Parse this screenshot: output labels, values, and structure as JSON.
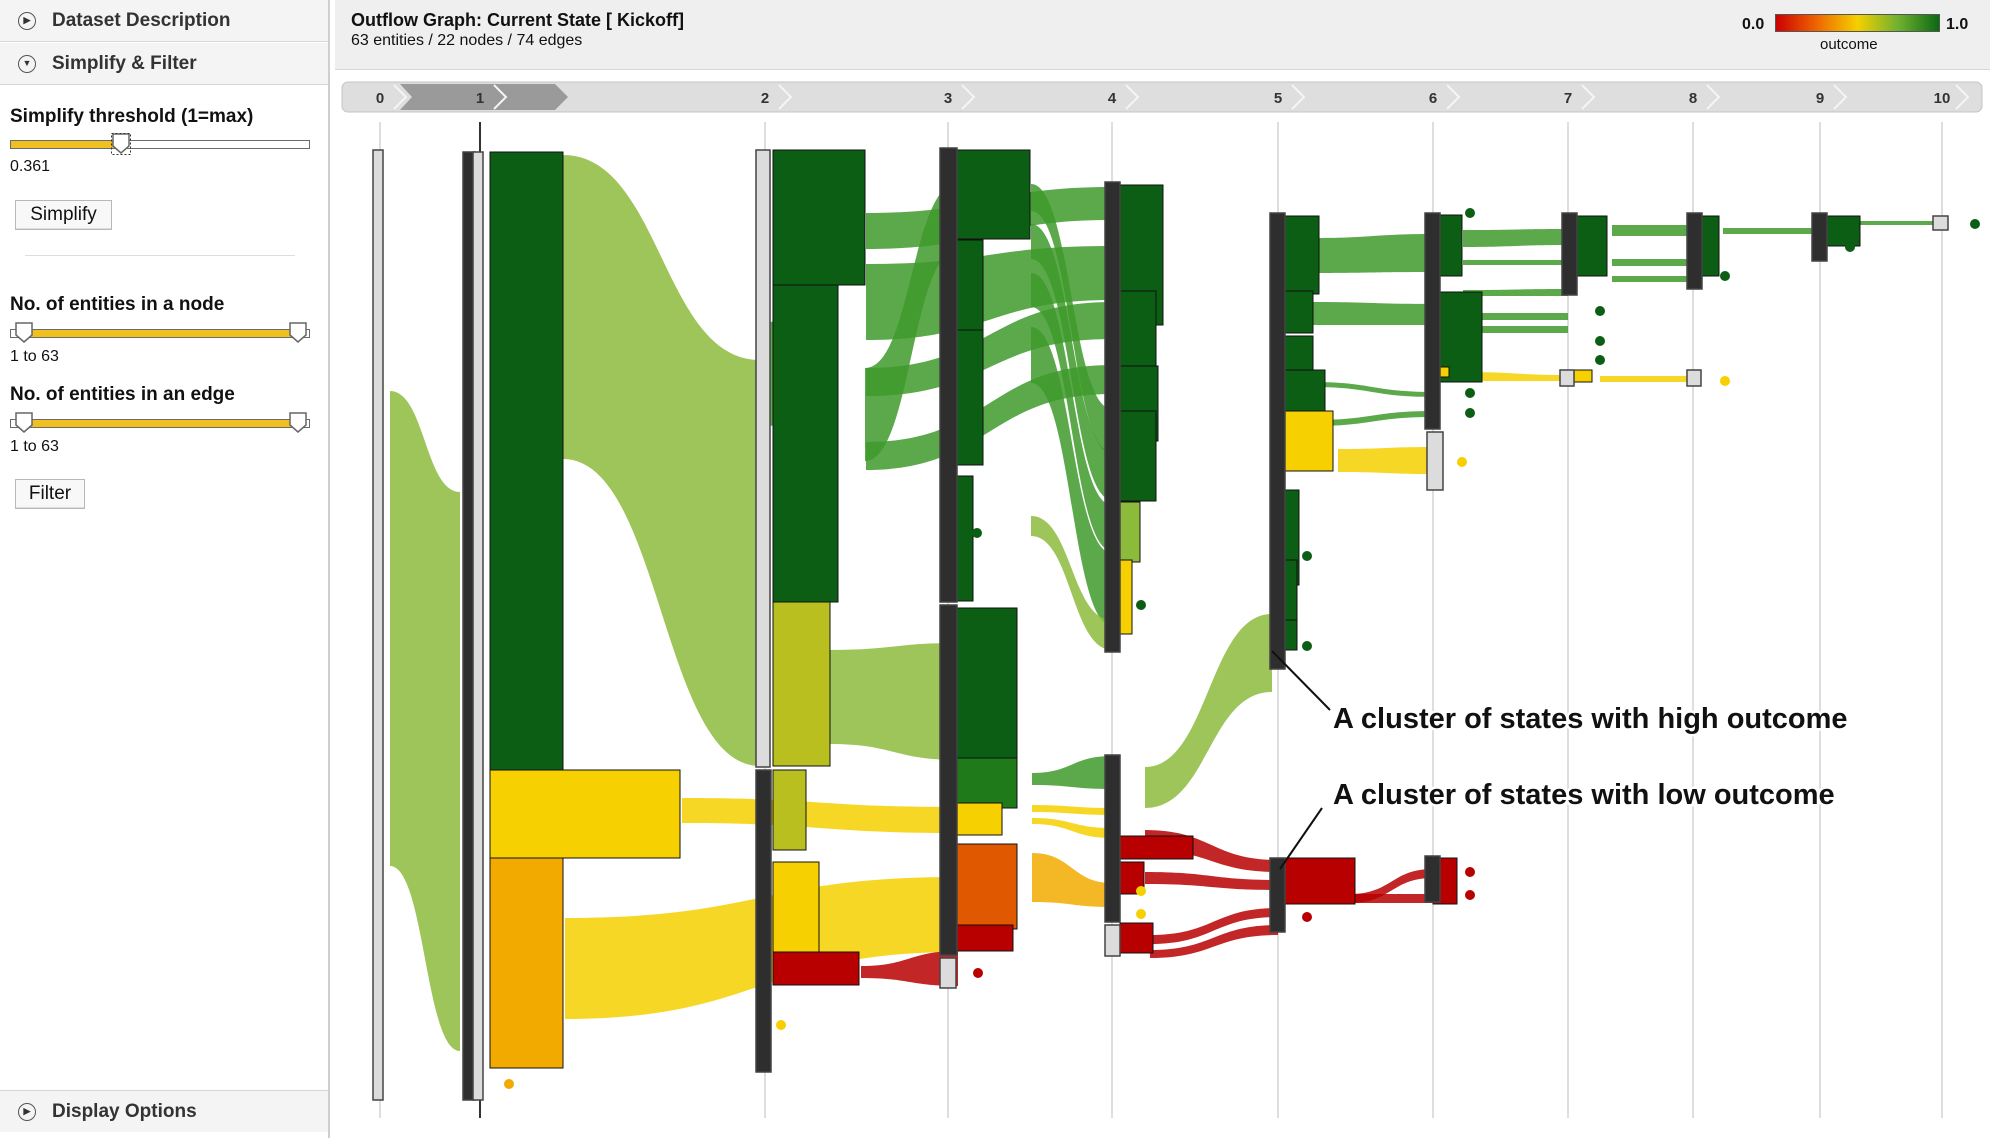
{
  "sidebar": {
    "dataset_description": "Dataset Description",
    "simplify_filter": "Simplify & Filter",
    "threshold_label": "Simplify threshold (1=max)",
    "threshold_value": "0.361",
    "threshold_level": 0.361,
    "simplify_button": "Simplify",
    "node_entities_label": "No. of entities in a node",
    "node_entities_range": "1 to 63",
    "edge_entities_label": "No. of entities in an edge",
    "edge_entities_range": "1 to 63",
    "filter_button": "Filter",
    "display_options": "Display Options"
  },
  "graph": {
    "title": "Outflow Graph: Current State [ Kickoff]",
    "subtitle": "63 entities / 22 nodes / 74 edges",
    "legend": {
      "min": "0.0",
      "max": "1.0",
      "label": "outcome"
    },
    "steps": [
      "0",
      "1",
      "2",
      "3",
      "4",
      "5",
      "6",
      "7",
      "8",
      "9",
      "10"
    ],
    "current_step": "1",
    "annotations": {
      "high": "A cluster of states with high outcome",
      "low": "A cluster of states with low outcome"
    }
  },
  "colors": {
    "dark_green": "#0b5e14",
    "green": "#1f7a1a",
    "mid_green": "#3e9a2c",
    "light_green": "#8cbb3c",
    "yellow_green": "#b8bf1e",
    "yellow": "#f6d000",
    "orange": "#f2aa00",
    "dark_orange": "#e05800",
    "red": "#b80000",
    "node_bar": "#2e2e2e",
    "end_node": "#dcdcdc"
  }
}
